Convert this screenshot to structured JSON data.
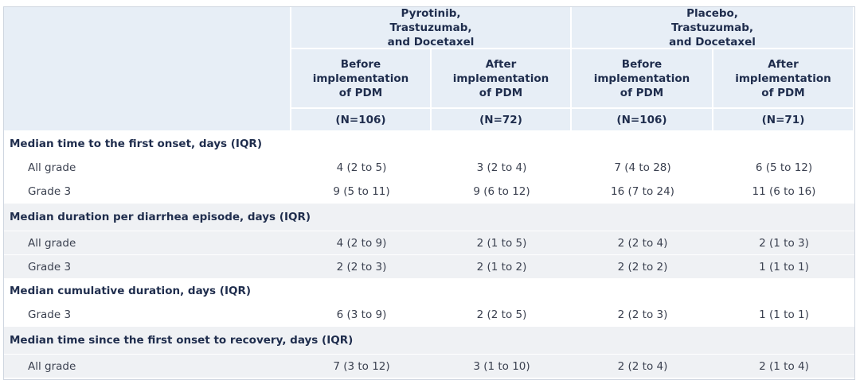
{
  "table": {
    "groups": [
      "Pyrotinib, Trastuzumab, and Docetaxel",
      "Placebo, Trastuzumab, and Docetaxel"
    ],
    "subheaders": [
      "Before implementation of PDM",
      "After implementation of PDM",
      "Before implementation of PDM",
      "After implementation of PDM"
    ],
    "n": [
      "(N=106)",
      "(N=72)",
      "(N=106)",
      "(N=71)"
    ],
    "sections": [
      {
        "title": "Median time to the first onset, days (IQR)",
        "rows": [
          {
            "label": "All grade",
            "values": [
              "4 (2 to 5)",
              "3 (2 to 4)",
              "7 (4 to 28)",
              "6 (5 to 12)"
            ]
          },
          {
            "label": "Grade 3",
            "values": [
              "9 (5 to 11)",
              "9 (6 to 12)",
              "16 (7 to 24)",
              "11 (6 to 16)"
            ]
          }
        ]
      },
      {
        "title": "Median duration per diarrhea episode, days (IQR)",
        "rows": [
          {
            "label": "All grade",
            "values": [
              "4 (2 to 9)",
              "2 (1 to 5)",
              "2 (2 to 4)",
              "2 (1 to 3)"
            ]
          },
          {
            "label": "Grade 3",
            "values": [
              "2 (2 to 3)",
              "2 (1 to 2)",
              "2 (2 to 2)",
              "1 (1 to 1)"
            ]
          }
        ]
      },
      {
        "title": "Median cumulative duration, days (IQR)",
        "rows": [
          {
            "label": "Grade 3",
            "values": [
              "6 (3 to 9)",
              "2 (2 to 5)",
              "2 (2 to 3)",
              "1 (1 to 1)"
            ]
          }
        ]
      },
      {
        "title": "Median time since the first onset to recovery, days (IQR)",
        "rows": [
          {
            "label": "All grade",
            "values": [
              "7 (3 to 12)",
              "3 (1 to 10)",
              "2 (2 to 4)",
              "2 (1 to 4)"
            ]
          }
        ]
      }
    ]
  }
}
